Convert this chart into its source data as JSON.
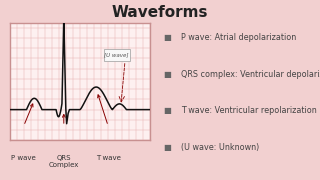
{
  "title": "Waveforms",
  "title_fontsize": 11,
  "title_fontweight": "bold",
  "title_color": "#222222",
  "bg_color": "#f2d0d0",
  "panel_bg": "#fdf0f0",
  "panel_border": "#c89090",
  "grid_color_major": "#e8b0b0",
  "grid_color_minor": "#f0d0d0",
  "legend_items": [
    "P wave: Atrial depolarization",
    "QRS complex: Ventricular depolarization",
    "T wave: Ventricular repolarization",
    "(U wave: Unknown)"
  ],
  "legend_color": "#444444",
  "legend_fontsize": 5.8,
  "bullet_color": "#666666",
  "arrow_color": "#880000",
  "label_color": "#333333",
  "label_fontsize": 5.0,
  "u_wave_text": "[U wave]",
  "u_wave_fontsize": 4.0,
  "ekg_color": "#111111",
  "ekg_linewidth": 1.1
}
